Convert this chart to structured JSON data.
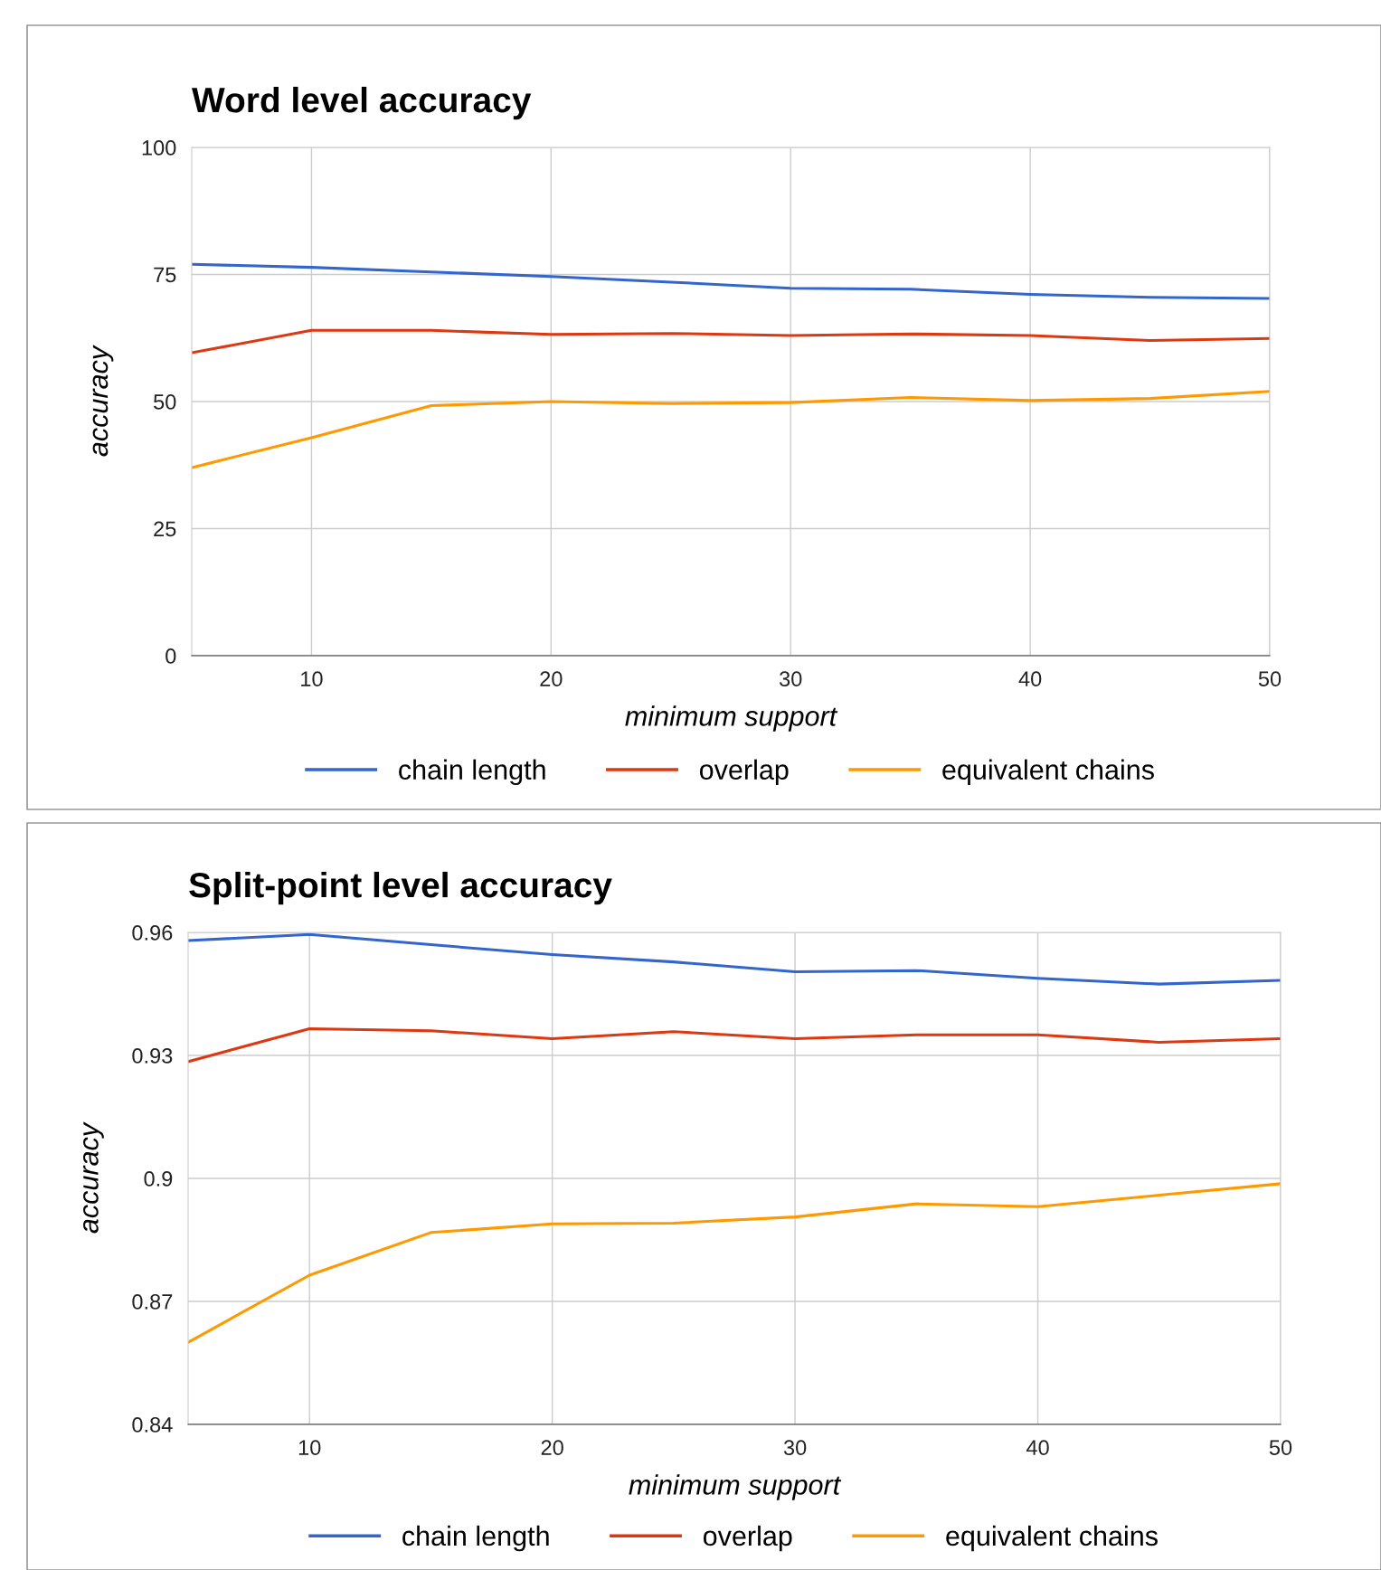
{
  "chart_data": [
    {
      "type": "line",
      "title": "Word level accuracy",
      "xlabel": "minimum support",
      "ylabel": "accuracy",
      "x": [
        5,
        10,
        15,
        20,
        25,
        30,
        35,
        40,
        45,
        50
      ],
      "series": [
        {
          "name": "chain length",
          "color": "#3366cc",
          "values": [
            77,
            76.4,
            75.5,
            74.6,
            73.5,
            72.3,
            72.1,
            71.1,
            70.5,
            70.3
          ]
        },
        {
          "name": "overlap",
          "color": "#dc3912",
          "values": [
            59.6,
            64,
            64,
            63.2,
            63.4,
            63,
            63.3,
            63,
            62,
            62.4
          ]
        },
        {
          "name": "equivalent chains",
          "color": "#ff9900",
          "values": [
            37,
            42.9,
            49.2,
            50,
            49.6,
            49.8,
            50.8,
            50.2,
            50.6,
            52
          ]
        }
      ],
      "xlim": [
        5,
        50
      ],
      "xticks": [
        10,
        20,
        30,
        40,
        50
      ],
      "ylim": [
        0,
        100
      ],
      "yticks": [
        0,
        25,
        50,
        75,
        100
      ],
      "grid": true,
      "legend": "bottom",
      "marker": "none",
      "line_style": "solid"
    },
    {
      "type": "line",
      "title": "Split-point level accuracy",
      "xlabel": "minimum support",
      "ylabel": "accuracy",
      "x": [
        5,
        10,
        15,
        20,
        25,
        30,
        35,
        40,
        45,
        50
      ],
      "series": [
        {
          "name": "chain length",
          "color": "#3366cc",
          "values": [
            0.958,
            0.9595,
            0.957,
            0.9546,
            0.9528,
            0.9504,
            0.9507,
            0.9488,
            0.9474,
            0.9483
          ]
        },
        {
          "name": "overlap",
          "color": "#dc3912",
          "values": [
            0.9285,
            0.9365,
            0.936,
            0.9341,
            0.9358,
            0.9341,
            0.935,
            0.935,
            0.9332,
            0.9341
          ]
        },
        {
          "name": "equivalent chains",
          "color": "#ff9900",
          "values": [
            0.86,
            0.8764,
            0.8868,
            0.8889,
            0.8891,
            0.8906,
            0.8938,
            0.8931,
            0.8959,
            0.8987
          ]
        }
      ],
      "xlim": [
        5,
        50
      ],
      "xticks": [
        10,
        20,
        30,
        40,
        50
      ],
      "ylim": [
        0.84,
        0.96
      ],
      "yticks": [
        0.84,
        0.87,
        0.9,
        0.93,
        0.96
      ],
      "grid": true,
      "legend": "bottom",
      "marker": "none",
      "line_style": "solid"
    }
  ]
}
